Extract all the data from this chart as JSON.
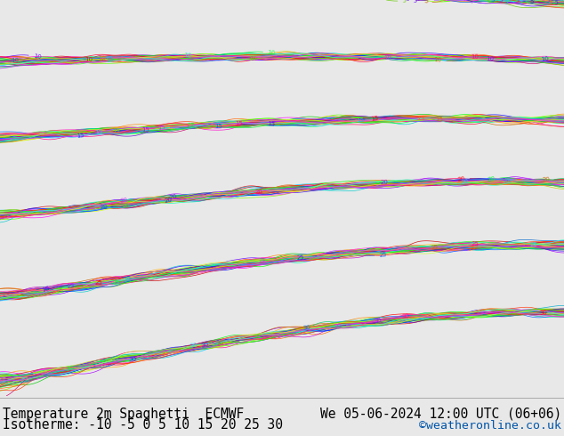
{
  "title_left": "Temperature 2m Spaghetti  ECMWF",
  "title_right": "We 05-06-2024 12:00 UTC (06+06)",
  "isotherme_label": "Isotherme: -10 -5 0 5 10 15 20 25 30",
  "credit": "©weatheronline.co.uk",
  "bg_color": "#e8e8e8",
  "land_color": "#c8c8c8",
  "sea_color": "#ffffff",
  "text_color": "#000000",
  "credit_color": "#0055aa",
  "title_fontsize": 10.5,
  "credit_fontsize": 9.5,
  "isotherme_fontsize": 10.5,
  "fig_width": 6.34,
  "fig_height": 4.9,
  "extent": [
    -30,
    50,
    25,
    72
  ],
  "n_members": 50,
  "member_colors": [
    "#ff0000",
    "#00cc00",
    "#0000ff",
    "#ff00ff",
    "#00cccc",
    "#ff8800",
    "#8800ff",
    "#00ff00",
    "#ff0088",
    "#88ff00",
    "#cc0000",
    "#00aacc",
    "#aa00ff",
    "#ffaa00",
    "#00ffaa",
    "#ff6600",
    "#6600ff",
    "#00ff66",
    "#ff0066",
    "#66ff00",
    "#0066ff",
    "#ff00cc",
    "#00ccff",
    "#ccff00",
    "#ff6600",
    "#cc00cc",
    "#00cccc",
    "#cccc00",
    "#cc6600",
    "#00cc66",
    "#6600cc",
    "#cc0066",
    "#66cc00",
    "#0066cc",
    "#66cc00",
    "#ff3300",
    "#00ff33",
    "#3300ff",
    "#ff0033",
    "#33ff00",
    "#0033ff",
    "#ff3300",
    "#33ff00",
    "#ff33cc",
    "#33ccff",
    "#ccff33",
    "#ffcc33",
    "#33ffcc",
    "#cc33ff",
    "#ff33aa"
  ],
  "label_colors": [
    "#ff0000",
    "#00cc00",
    "#0000ff",
    "#ff00ff",
    "#00cccc",
    "#ff8800",
    "#8800ff",
    "#00ff00",
    "#ff0088",
    "#88ff00"
  ],
  "isotherme_values": [
    -10,
    -5,
    0,
    5,
    10,
    15,
    20,
    25,
    30
  ],
  "label_fontsize": 5,
  "contour_linewidth": 0.5
}
